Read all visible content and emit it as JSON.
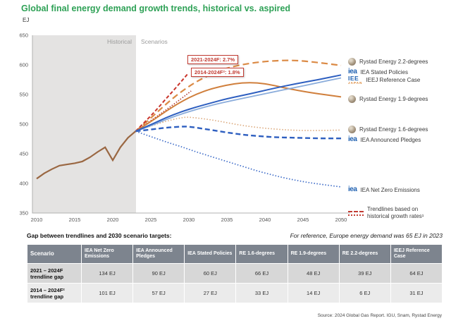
{
  "title": "Global final energy demand growth trends, historical vs. aspired",
  "unit_label": "EJ",
  "colors": {
    "title_green": "#2EA156",
    "historical_brown": "#9A6742",
    "trendline_red": "#C9342A",
    "trendline_dark_red": "#B23830",
    "rystad_orange": "#DB8A45",
    "rystad_orange_solid": "#D07F3C",
    "rystad_tan": "#DBA87B",
    "iea_blue": "#2E5FC0",
    "ieej_light_blue": "#8AACDB",
    "table_header_gray": "#7D848E",
    "historical_zone_gray": "#E4E3E2"
  },
  "annotations": [
    {
      "label": "2021-2024F: 2.7%"
    },
    {
      "label": "2014-2024F²: 1.8%"
    }
  ],
  "logos": {
    "iea": "iea",
    "ieej_top": "IEE",
    "ieej_bottom": "JAPAN"
  },
  "legend": {
    "items": [
      {
        "icon": "rystad-globe",
        "label": "Rystad Energy 2.2-degrees"
      },
      {
        "icon": "iea-logo",
        "label": "IEA Stated Policies"
      },
      {
        "icon": "ieej-logo",
        "label": "IEEJ Reference Case"
      },
      {
        "icon": "rystad-globe",
        "label": "Rystad Energy 1.9-degrees"
      },
      {
        "icon": "rystad-globe",
        "label": "Rystad Energy 1.6-degrees"
      },
      {
        "icon": "iea-logo",
        "label": "IEA Announced Pledges"
      },
      {
        "icon": "iea-logo",
        "label": "IEA Net Zero Emissions"
      },
      {
        "icon": "red-trendline-sample",
        "label_line1": "Trendlines based on",
        "label_line2": "historical growth rates¹"
      }
    ]
  },
  "chart_data": {
    "type": "line",
    "title": "Global final energy demand growth trends, historical vs. aspired",
    "ylabel": "EJ",
    "xlim": [
      2010,
      2050
    ],
    "ylim": [
      350,
      650
    ],
    "grid": false,
    "legend_position": "right",
    "y_ticks": [
      650,
      600,
      550,
      500,
      450,
      400,
      350
    ],
    "x_ticks": [
      2010,
      2015,
      2020,
      2025,
      2030,
      2035,
      2040,
      2045,
      2050
    ],
    "region_labels": {
      "historical": "Historical",
      "scenarios": "Scenarios"
    },
    "historical_region": {
      "from": 2010,
      "to": 2023
    },
    "series": [
      {
        "id": "rystad-2-2-degrees",
        "name": "Rystad Energy 2.2-degrees",
        "color": "#DB8A45",
        "width": 2.2,
        "dash": "9 5",
        "points": [
          [
            2023,
            488
          ],
          [
            2025,
            510
          ],
          [
            2027,
            534
          ],
          [
            2029,
            555
          ],
          [
            2031,
            572
          ],
          [
            2033,
            585
          ],
          [
            2035,
            595
          ],
          [
            2038,
            603
          ],
          [
            2041,
            607
          ],
          [
            2044,
            608
          ],
          [
            2047,
            604
          ],
          [
            2050,
            599
          ]
        ]
      },
      {
        "id": "rystad-1-6-degrees",
        "name": "Rystad Energy 1.6-degrees",
        "color": "#DBA87B",
        "width": 1.6,
        "dash": "1.5 2.5",
        "points": [
          [
            2023,
            488
          ],
          [
            2025,
            497
          ],
          [
            2027,
            505
          ],
          [
            2029,
            511
          ],
          [
            2030,
            512
          ],
          [
            2032,
            509
          ],
          [
            2034,
            505
          ],
          [
            2036,
            500
          ],
          [
            2038,
            496
          ],
          [
            2040,
            493
          ],
          [
            2043,
            490
          ],
          [
            2046,
            489
          ],
          [
            2050,
            490
          ]
        ]
      },
      {
        "id": "iea-net-zero-emissions",
        "name": "IEA Net Zero Emissions",
        "color": "#3E6CC8",
        "width": 1.7,
        "dash": "1.5 2.5",
        "points": [
          [
            2023,
            488
          ],
          [
            2025,
            479
          ],
          [
            2027,
            470
          ],
          [
            2029,
            462
          ],
          [
            2031,
            453
          ],
          [
            2033,
            445
          ],
          [
            2035,
            437
          ],
          [
            2037,
            429
          ],
          [
            2039,
            421
          ],
          [
            2041,
            414
          ],
          [
            2043,
            408
          ],
          [
            2045,
            403
          ],
          [
            2047,
            399
          ],
          [
            2050,
            394
          ]
        ]
      },
      {
        "id": "iea-announced-pledges",
        "name": "IEA Announced Pledges",
        "color": "#2E5FC0",
        "width": 2.4,
        "dash": "7 4",
        "points": [
          [
            2023,
            488
          ],
          [
            2025,
            491
          ],
          [
            2027,
            494
          ],
          [
            2029,
            496
          ],
          [
            2030,
            496
          ],
          [
            2032,
            492
          ],
          [
            2034,
            488
          ],
          [
            2036,
            484
          ],
          [
            2038,
            481
          ],
          [
            2041,
            478
          ],
          [
            2044,
            477
          ],
          [
            2047,
            476
          ],
          [
            2050,
            476
          ]
        ]
      },
      {
        "id": "trendline-2014-2024",
        "name": "2014-2024F trendline 1.8%",
        "color": "#B23830",
        "width": 1.6,
        "dash": "1.5 2.2",
        "points": [
          [
            2023,
            488
          ],
          [
            2025,
            506
          ],
          [
            2027,
            524
          ],
          [
            2029,
            543
          ],
          [
            2030.3,
            556
          ]
        ]
      },
      {
        "id": "trendline-2021-2024",
        "name": "2021-2024F trendline 2.7%",
        "color": "#C9342A",
        "width": 2,
        "dash": "5 3",
        "points": [
          [
            2023,
            488
          ],
          [
            2024,
            501
          ],
          [
            2025,
            514
          ],
          [
            2026,
            528
          ],
          [
            2027,
            543
          ],
          [
            2028,
            557
          ],
          [
            2029,
            572
          ],
          [
            2029.8,
            584
          ]
        ]
      },
      {
        "id": "rystad-1-9-degrees",
        "name": "Rystad Energy 1.9-degrees",
        "color": "#D07F3C",
        "width": 2,
        "dash": "",
        "points": [
          [
            2023,
            488
          ],
          [
            2025,
            504
          ],
          [
            2027,
            522
          ],
          [
            2029,
            538
          ],
          [
            2031,
            551
          ],
          [
            2033,
            560
          ],
          [
            2035,
            566
          ],
          [
            2037,
            570
          ],
          [
            2039,
            570
          ],
          [
            2041,
            566
          ],
          [
            2043,
            560
          ],
          [
            2046,
            553
          ],
          [
            2050,
            546
          ]
        ]
      },
      {
        "id": "ieej-reference-case",
        "name": "IEEJ Reference Case",
        "color": "#8AACDB",
        "width": 1.8,
        "dash": "",
        "points": [
          [
            2023,
            488
          ],
          [
            2025,
            497
          ],
          [
            2027,
            508
          ],
          [
            2029,
            517
          ],
          [
            2031,
            525
          ],
          [
            2033,
            532
          ],
          [
            2035,
            538
          ],
          [
            2038,
            546
          ],
          [
            2041,
            554
          ],
          [
            2044,
            562
          ],
          [
            2047,
            570
          ],
          [
            2050,
            578
          ]
        ]
      },
      {
        "id": "iea-stated-policies",
        "name": "IEA Stated Policies",
        "color": "#2E5FC0",
        "width": 2,
        "dash": "",
        "points": [
          [
            2023,
            488
          ],
          [
            2025,
            499
          ],
          [
            2027,
            511
          ],
          [
            2029,
            521
          ],
          [
            2031,
            529
          ],
          [
            2033,
            536
          ],
          [
            2035,
            543
          ],
          [
            2038,
            551
          ],
          [
            2041,
            560
          ],
          [
            2044,
            568
          ],
          [
            2047,
            575
          ],
          [
            2050,
            583
          ]
        ]
      },
      {
        "id": "historical",
        "name": "Historical",
        "color": "#9A6742",
        "width": 2.2,
        "dash": "",
        "straight": true,
        "points": [
          [
            2010,
            408
          ],
          [
            2011,
            417
          ],
          [
            2012,
            424
          ],
          [
            2013,
            430
          ],
          [
            2014,
            432
          ],
          [
            2015,
            434
          ],
          [
            2016,
            437
          ],
          [
            2017,
            444
          ],
          [
            2018,
            453
          ],
          [
            2019,
            461
          ],
          [
            2020,
            439
          ],
          [
            2021,
            461
          ],
          [
            2022,
            477
          ],
          [
            2023,
            488
          ]
        ]
      }
    ]
  },
  "table": {
    "caption": "Gap between trendlines and 2030 scenario targets:",
    "reference_note": "For reference, Europe energy demand was 65 EJ in 2023",
    "columns": [
      "Scenario",
      "IEA Net Zero Emissions",
      "IEA Announced Pledges",
      "IEA Stated Policies",
      "RE 1.6-degrees",
      "RE 1.9-degrees",
      "RE 2.2-degrees",
      "IEEJ Reference Case"
    ],
    "rows": [
      {
        "label": "2021 – 2024F trendline gap",
        "values": [
          "134 EJ",
          "90 EJ",
          "60 EJ",
          "66 EJ",
          "48 EJ",
          "39 EJ",
          "64 EJ"
        ]
      },
      {
        "label": "2014 – 2024F² trendline gap",
        "values": [
          "101 EJ",
          "57 EJ",
          "27 EJ",
          "33 EJ",
          "14 EJ",
          "6 EJ",
          "31 EJ"
        ]
      }
    ]
  },
  "source": "Source: 2024 Global Gas Report. IGU, Snam, Rystad Energy"
}
